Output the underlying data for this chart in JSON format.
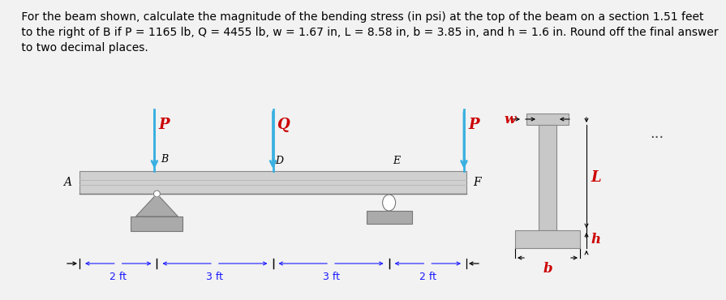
{
  "title_text": " For the beam shown, calculate the magnitude of the bending stress (in psi) at the top of the beam on a section 1.51 feet\n to the right of B if P = 1165 lb, Q = 4455 lb, w = 1.67 in, L = 8.58 in, b = 3.85 in, and h = 1.6 in. Round off the final answer\n to two decimal places.",
  "title_fontsize": 10.0,
  "bg_color": "#f2f2f2",
  "beam_color": "#c0c0c0",
  "beam_dark": "#888888",
  "arrow_color": "#3ab0e0",
  "support_color": "#aaaaaa",
  "support_dark": "#666666",
  "text_color": "black",
  "red_color": "#cc0000",
  "dim_color": "#1a1aff",
  "dots_color": "#444444"
}
